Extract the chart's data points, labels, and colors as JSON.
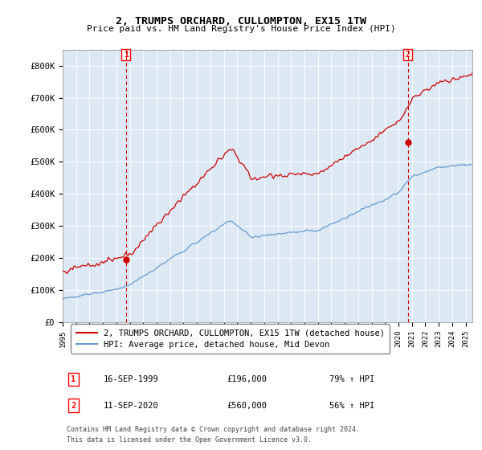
{
  "title": "2, TRUMPS ORCHARD, CULLOMPTON, EX15 1TW",
  "subtitle": "Price paid vs. HM Land Registry's House Price Index (HPI)",
  "ylim": [
    0,
    850000
  ],
  "yticks": [
    0,
    100000,
    200000,
    300000,
    400000,
    500000,
    600000,
    700000,
    800000
  ],
  "ytick_labels": [
    "£0",
    "£100K",
    "£200K",
    "£300K",
    "£400K",
    "£500K",
    "£600K",
    "£700K",
    "£800K"
  ],
  "xlim_start": 1995,
  "xlim_end": 2025.5,
  "sale1_date": 1999.71,
  "sale1_price": 196000,
  "sale2_date": 2020.69,
  "sale2_price": 560000,
  "sale1_date_str": "16-SEP-1999",
  "sale1_price_str": "£196,000",
  "sale1_hpi_str": "79% ↑ HPI",
  "sale2_date_str": "11-SEP-2020",
  "sale2_price_str": "£560,000",
  "sale2_hpi_str": "56% ↑ HPI",
  "red_line_color": "#cc0000",
  "blue_line_color": "#6699cc",
  "chart_bg": "#dce9f5",
  "legend1": "2, TRUMPS ORCHARD, CULLOMPTON, EX15 1TW (detached house)",
  "legend2": "HPI: Average price, detached house, Mid Devon",
  "footnote1": "Contains HM Land Registry data © Crown copyright and database right 2024.",
  "footnote2": "This data is licensed under the Open Government Licence v3.0.",
  "background_color": "#ffffff",
  "grid_color": "#aaaacc"
}
